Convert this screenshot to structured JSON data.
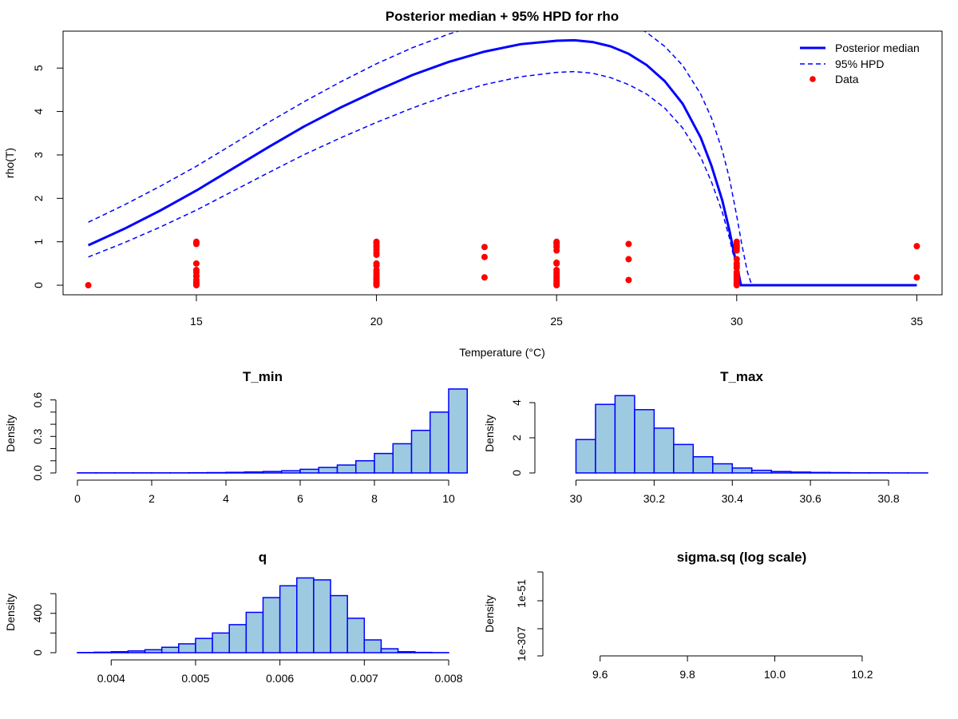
{
  "colors": {
    "line": "#0000ff",
    "points": "#ff0000",
    "hist_fill": "#9ecae1",
    "hist_border": "#0000ff",
    "axis": "#000000"
  },
  "chart_data": [
    {
      "type": "line",
      "title": "Posterior median + 95% HPD for rho",
      "xlabel": "Temperature (°C)",
      "ylabel": "rho(T)",
      "xlim": [
        11.3,
        35.7
      ],
      "ylim": [
        -0.22,
        5.85
      ],
      "x_ticks": [
        15,
        20,
        25,
        30,
        35
      ],
      "y_ticks": [
        0,
        1,
        2,
        3,
        4,
        5
      ],
      "legend": {
        "position": "top-right",
        "entries": [
          {
            "label": "Posterior median",
            "style": "solid-line"
          },
          {
            "label": "95% HPD",
            "style": "dashed-line"
          },
          {
            "label": "Data",
            "style": "point"
          }
        ]
      },
      "series": [
        {
          "name": "Posterior median",
          "style": "solid",
          "x": [
            12,
            13,
            14,
            15,
            16,
            17,
            18,
            19,
            20,
            21,
            22,
            23,
            24,
            25,
            25.5,
            26,
            26.5,
            27,
            27.5,
            28,
            28.5,
            29,
            29.3,
            29.6,
            29.8,
            29.95,
            30.05,
            30.1,
            30.12,
            31,
            32,
            33,
            34,
            35
          ],
          "y": [
            0.92,
            1.3,
            1.72,
            2.18,
            2.68,
            3.18,
            3.66,
            4.09,
            4.48,
            4.84,
            5.14,
            5.38,
            5.55,
            5.63,
            5.64,
            5.6,
            5.5,
            5.33,
            5.07,
            4.7,
            4.18,
            3.4,
            2.75,
            1.95,
            1.25,
            0.65,
            0.28,
            0.07,
            0,
            0,
            0,
            0,
            0,
            0
          ]
        },
        {
          "name": "95% HPD",
          "style": "dashed",
          "x": [
            12,
            13,
            14,
            15,
            16,
            17,
            18,
            19,
            20,
            21,
            22,
            23,
            24,
            25,
            25.5,
            26,
            26.5,
            27,
            27.5,
            28,
            28.5,
            29,
            29.3,
            29.6,
            29.8,
            29.95,
            30.05,
            30.1,
            30.12,
            31,
            32,
            33,
            34,
            35
          ],
          "y": [
            0.65,
            0.98,
            1.34,
            1.73,
            2.16,
            2.59,
            3.01,
            3.39,
            3.75,
            4.08,
            4.38,
            4.62,
            4.8,
            4.9,
            4.92,
            4.88,
            4.78,
            4.62,
            4.4,
            4.08,
            3.62,
            2.95,
            2.38,
            1.68,
            1.08,
            0.55,
            0.22,
            0.05,
            0,
            0,
            0,
            0,
            0,
            0
          ]
        },
        {
          "name": "95% HPD",
          "style": "dashed",
          "x": [
            12,
            13,
            14,
            15,
            16,
            17,
            18,
            19,
            20,
            21,
            22,
            23,
            24,
            24.5,
            25,
            25.5,
            26,
            26.5,
            27,
            27.5,
            28,
            28.5,
            29,
            29.3,
            29.6,
            29.8,
            30,
            30.15,
            30.3,
            30.4,
            30.42,
            31,
            32,
            33,
            34,
            35
          ],
          "y": [
            1.45,
            1.85,
            2.28,
            2.74,
            3.24,
            3.75,
            4.23,
            4.68,
            5.1,
            5.47,
            5.78,
            6.04,
            6.24,
            6.3,
            6.34,
            6.34,
            6.3,
            6.2,
            6.04,
            5.82,
            5.5,
            5.06,
            4.4,
            3.85,
            3.1,
            2.45,
            1.6,
            0.9,
            0.3,
            0.05,
            0,
            0,
            0,
            0,
            0,
            0
          ]
        },
        {
          "name": "Data",
          "style": "points",
          "x": [
            12,
            15,
            15,
            15,
            15,
            15,
            15,
            15,
            15,
            15,
            15,
            15,
            15,
            15,
            20,
            20,
            20,
            20,
            20,
            20,
            20,
            20,
            20,
            20,
            20,
            20,
            20,
            20,
            20,
            20,
            20,
            20,
            20,
            23,
            23,
            23,
            25,
            25,
            25,
            25,
            25,
            25,
            25,
            25,
            25,
            25,
            25,
            25,
            25,
            25,
            25,
            25,
            25,
            27,
            27,
            27,
            30,
            30,
            30,
            30,
            30,
            30,
            30,
            30,
            30,
            30,
            30,
            30,
            30,
            30,
            30,
            30,
            30,
            30,
            35,
            35
          ],
          "y": [
            0.0,
            1.0,
            0.98,
            0.95,
            0.5,
            0.35,
            0.3,
            0.22,
            0.2,
            0.12,
            0.08,
            0.05,
            0.02,
            0.0,
            1.0,
            0.97,
            0.92,
            0.88,
            0.82,
            0.75,
            0.7,
            0.5,
            0.45,
            0.35,
            0.3,
            0.25,
            0.2,
            0.15,
            0.12,
            0.08,
            0.05,
            0.02,
            0.0,
            0.88,
            0.65,
            0.18,
            1.0,
            0.98,
            0.95,
            0.9,
            0.88,
            0.8,
            0.52,
            0.5,
            0.35,
            0.3,
            0.25,
            0.2,
            0.15,
            0.1,
            0.05,
            0.02,
            0.0,
            0.95,
            0.6,
            0.12,
            1.0,
            0.95,
            0.9,
            0.85,
            0.8,
            0.6,
            0.5,
            0.45,
            0.4,
            0.3,
            0.25,
            0.2,
            0.15,
            0.12,
            0.08,
            0.05,
            0.02,
            0.0,
            0.9,
            0.18
          ]
        }
      ]
    },
    {
      "type": "histogram",
      "title": "T_min",
      "ylabel": "Density",
      "xlim": [
        0,
        10
      ],
      "x_ticks": [
        0,
        2,
        4,
        6,
        8,
        10
      ],
      "ylim": [
        0,
        0.65
      ],
      "y_ticks": [
        0.0,
        0.3,
        0.6
      ],
      "y_minor_ticks": [
        0.1,
        0.2,
        0.4,
        0.5
      ],
      "bins": {
        "start": 0,
        "width": 0.5,
        "densities": [
          0.001,
          0.001,
          0.001,
          0.001,
          0.001,
          0.001,
          0.002,
          0.003,
          0.005,
          0.008,
          0.012,
          0.018,
          0.03,
          0.045,
          0.065,
          0.1,
          0.16,
          0.24,
          0.35,
          0.5,
          0.69
        ]
      }
    },
    {
      "type": "histogram",
      "title": "T_max",
      "ylabel": "Density",
      "xlim": [
        29.95,
        30.9
      ],
      "x_ticks": [
        30.0,
        30.2,
        30.4,
        30.6,
        30.8
      ],
      "ylim": [
        0,
        4.5
      ],
      "y_ticks": [
        0,
        2,
        4
      ],
      "bins": {
        "start": 30.0,
        "width": 0.05,
        "densities": [
          1.9,
          3.9,
          4.4,
          3.6,
          2.55,
          1.62,
          0.92,
          0.52,
          0.28,
          0.15,
          0.08,
          0.05,
          0.03,
          0.02,
          0.01,
          0.01,
          0.005,
          0.003
        ]
      }
    },
    {
      "type": "histogram",
      "title": "q",
      "ylabel": "Density",
      "xlim": [
        0.0036,
        0.008
      ],
      "x_ticks": [
        0.004,
        0.005,
        0.006,
        0.007,
        0.008
      ],
      "x_tick_labels": [
        "0.004",
        "0.005",
        "0.006",
        "0.007",
        "0.008"
      ],
      "ylim": [
        0,
        820
      ],
      "y_ticks": [
        0,
        400
      ],
      "y_minor_ticks": [
        200,
        600
      ],
      "bins": {
        "start": 0.0036,
        "width": 0.0002,
        "densities": [
          2,
          5,
          10,
          18,
          30,
          55,
          90,
          145,
          200,
          285,
          410,
          560,
          680,
          760,
          740,
          580,
          350,
          130,
          40,
          10,
          3,
          1
        ]
      }
    },
    {
      "type": "histogram",
      "title": "sigma.sq (log scale)",
      "ylabel": "Density",
      "xlim": [
        9.5,
        10.35
      ],
      "x_ticks": [
        9.6,
        9.8,
        10.0,
        10.2
      ],
      "x_tick_labels": [
        "9.6",
        "9.8",
        "10.0",
        "10.2"
      ],
      "y_ticks_labels": [
        "1e-307",
        "1e-51"
      ],
      "bins": {
        "densities": []
      }
    }
  ]
}
